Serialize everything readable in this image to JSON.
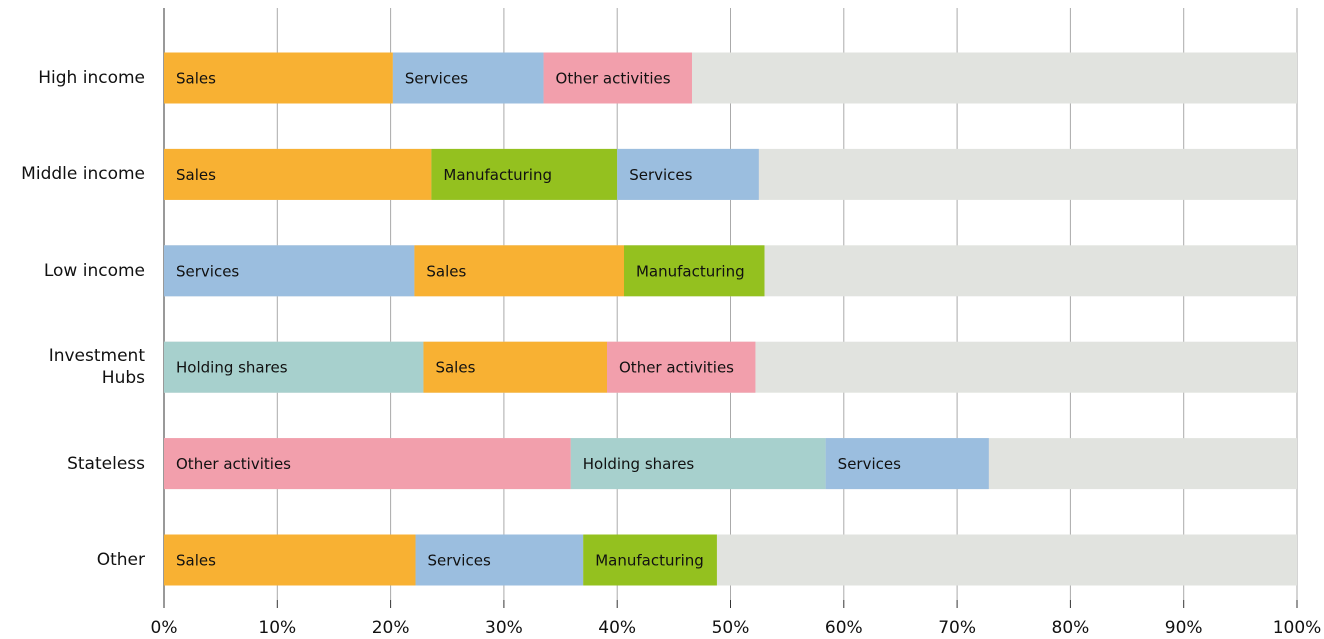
{
  "chart_data": {
    "type": "bar",
    "orientation": "horizontal",
    "stacked": true,
    "xlim": [
      0,
      100
    ],
    "xticks": [
      {
        "value": 0,
        "label": "0%"
      },
      {
        "value": 10,
        "label": "10%"
      },
      {
        "value": 20,
        "label": "20%"
      },
      {
        "value": 30,
        "label": "30%"
      },
      {
        "value": 40,
        "label": "40%"
      },
      {
        "value": 50,
        "label": "50%"
      },
      {
        "value": 60,
        "label": "60%"
      },
      {
        "value": 70,
        "label": "70%"
      },
      {
        "value": 80,
        "label": "80%"
      },
      {
        "value": 90,
        "label": "90%"
      },
      {
        "value": 100,
        "label": "100%"
      }
    ],
    "grid": true,
    "track_color": "#e1e3df",
    "bars": [
      {
        "category": "High income",
        "segments": [
          {
            "name": "Sales",
            "value": 20.2,
            "color": "#f8b133"
          },
          {
            "name": "Services",
            "value": 13.3,
            "color": "#9bbedf"
          },
          {
            "name": "Other activities",
            "value": 13.1,
            "color": "#f29fac"
          }
        ]
      },
      {
        "category": "Middle income",
        "segments": [
          {
            "name": "Sales",
            "value": 23.6,
            "color": "#f8b133"
          },
          {
            "name": "Manufacturing",
            "value": 16.4,
            "color": "#94c11f"
          },
          {
            "name": "Services",
            "value": 12.5,
            "color": "#9bbedf"
          }
        ]
      },
      {
        "category": "Low income",
        "segments": [
          {
            "name": "Services",
            "value": 22.1,
            "color": "#9bbedf"
          },
          {
            "name": "Sales",
            "value": 18.5,
            "color": "#f8b133"
          },
          {
            "name": "Manufacturing",
            "value": 12.4,
            "color": "#94c11f"
          }
        ]
      },
      {
        "category": "Investment\nHubs",
        "segments": [
          {
            "name": "Holding shares",
            "value": 22.9,
            "color": "#a7d0cd"
          },
          {
            "name": "Sales",
            "value": 16.2,
            "color": "#f8b133"
          },
          {
            "name": "Other activities",
            "value": 13.1,
            "color": "#f29fac"
          }
        ]
      },
      {
        "category": "Stateless",
        "segments": [
          {
            "name": "Other activities",
            "value": 35.9,
            "color": "#f29fac"
          },
          {
            "name": "Holding shares",
            "value": 22.5,
            "color": "#a7d0cd"
          },
          {
            "name": "Services",
            "value": 14.4,
            "color": "#9bbedf"
          }
        ]
      },
      {
        "category": "Other",
        "segments": [
          {
            "name": "Sales",
            "value": 22.2,
            "color": "#f8b133"
          },
          {
            "name": "Services",
            "value": 14.8,
            "color": "#9bbedf"
          },
          {
            "name": "Manufacturing",
            "value": 11.8,
            "color": "#94c11f"
          }
        ]
      }
    ]
  }
}
